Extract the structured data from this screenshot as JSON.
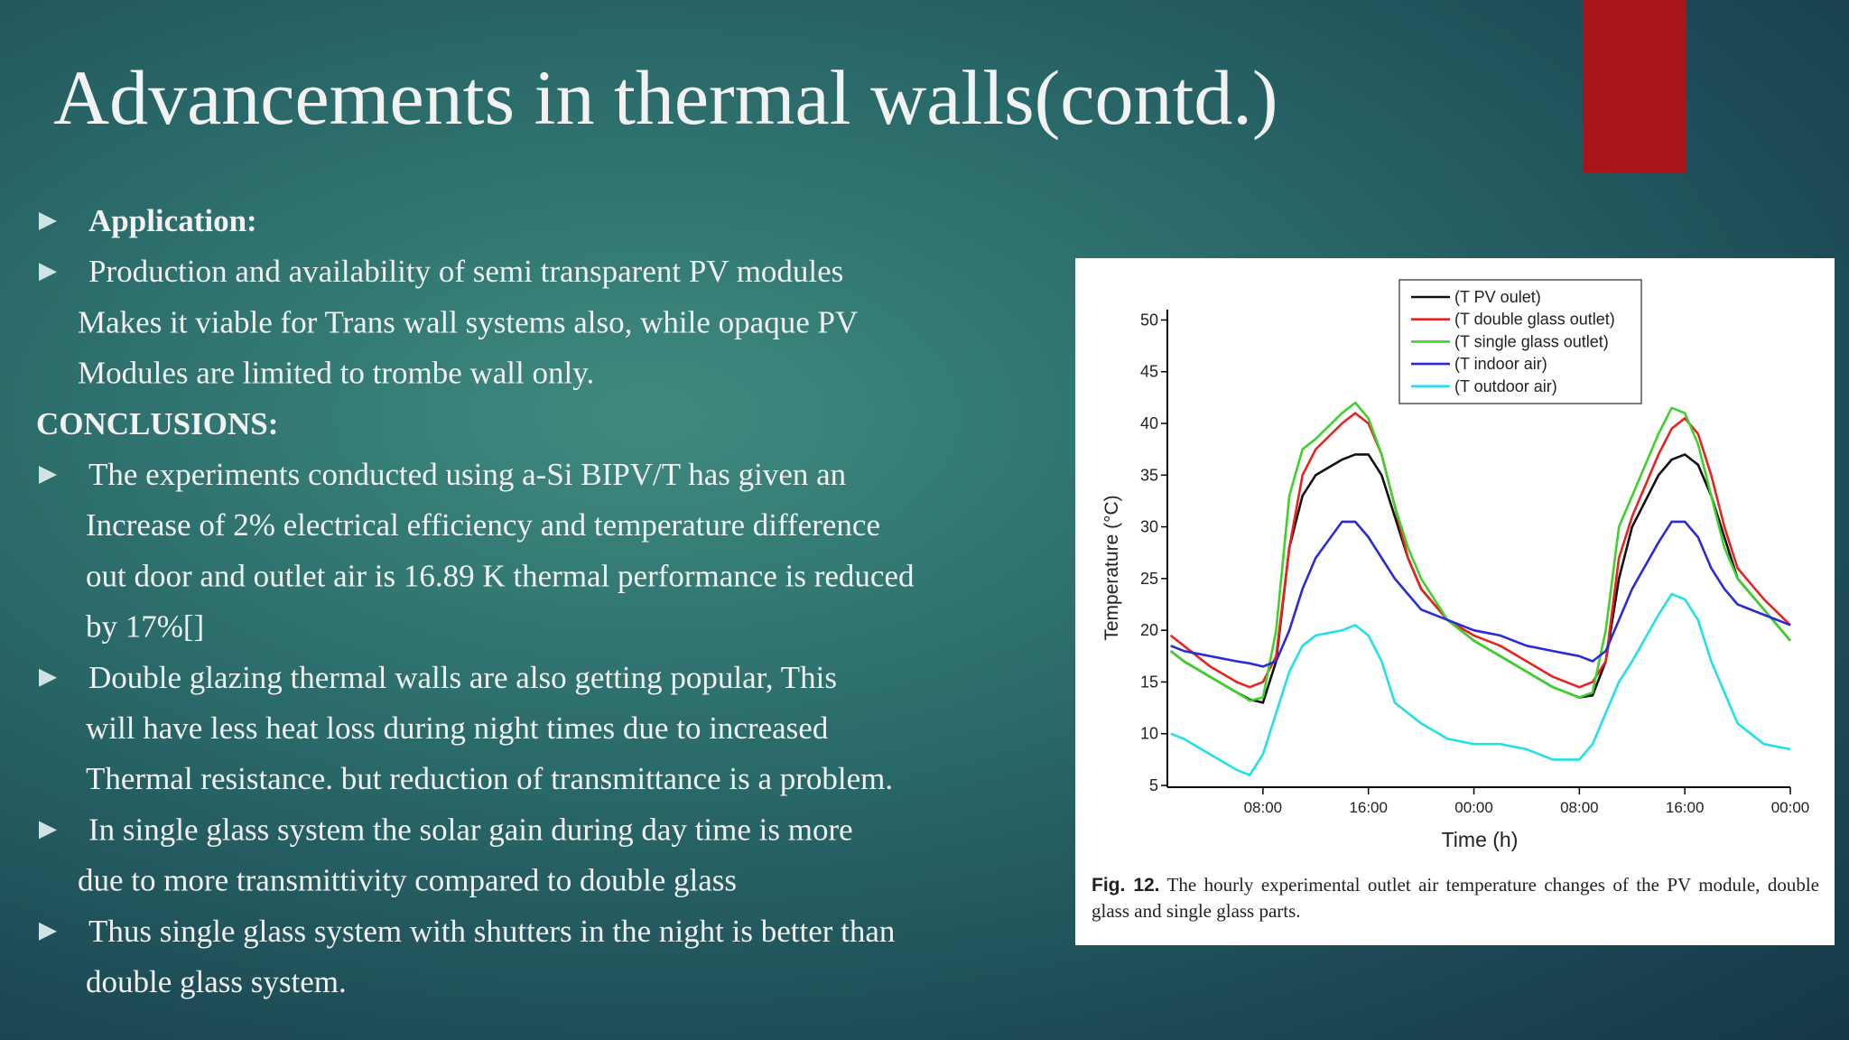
{
  "title": "Advancements in thermal walls(contd.)",
  "body": [
    {
      "bullet": true,
      "bold": true,
      "lines": [
        "Application:"
      ]
    },
    {
      "bullet": true,
      "lines": [
        "Production and availability of semi transparent PV modules",
        "Makes it viable for Trans wall systems also, while opaque PV",
        "Modules are limited to trombe wall only."
      ]
    },
    {
      "bullet": false,
      "bold": true,
      "lines": [
        "CONCLUSIONS:"
      ]
    },
    {
      "bullet": true,
      "lines": [
        "The experiments conducted using a-Si BIPV/T has given an",
        "Increase of 2% electrical efficiency  and temperature difference",
        "out door and outlet air is 16.89 K thermal performance is reduced",
        " by 17%[]"
      ]
    },
    {
      "bullet": true,
      "lines": [
        "Double glazing thermal walls are also getting popular, This",
        "will have less heat loss during night times due to increased",
        "Thermal resistance. but reduction of transmittance is a problem."
      ]
    },
    {
      "bullet": true,
      "lines": [
        "In single glass system the solar gain during day time is more",
        "due to more transmittivity compared to double glass"
      ]
    },
    {
      "bullet": true,
      "lines": [
        "Thus single glass system with shutters in the night is better than",
        "double glass system."
      ]
    }
  ],
  "chart_data": {
    "type": "line",
    "x_label": "Time (h)",
    "y_label": "Temperature (°C)",
    "x": [
      1,
      2,
      4,
      6,
      7,
      8,
      9,
      10,
      11,
      12,
      14,
      15,
      16,
      17,
      18,
      19,
      20,
      22,
      24,
      26,
      28,
      30,
      32,
      33,
      34,
      35,
      36,
      38,
      39,
      40,
      41,
      42,
      43,
      44,
      46,
      48
    ],
    "xlim": [
      0.75,
      48
    ],
    "xticks": [
      {
        "value": 8,
        "label": "08:00"
      },
      {
        "value": 16,
        "label": "16:00"
      },
      {
        "value": 24,
        "label": "00:00"
      },
      {
        "value": 32,
        "label": "08:00"
      },
      {
        "value": 40,
        "label": "16:00"
      },
      {
        "value": 48,
        "label": "00:00"
      }
    ],
    "ylim": [
      5,
      51
    ],
    "yticks": [
      5,
      10,
      15,
      20,
      25,
      30,
      35,
      40,
      45,
      50
    ],
    "legend": "top-right",
    "series": [
      {
        "name": "(T PV oulet)",
        "color": "#111111",
        "values": [
          18,
          17,
          15.5,
          14,
          13.3,
          13,
          17,
          28,
          33,
          35,
          36.5,
          37,
          37,
          35,
          31,
          27,
          24,
          21,
          19,
          17.5,
          16,
          14.5,
          13.5,
          13.7,
          17,
          25,
          30,
          35,
          36.5,
          37,
          36,
          33,
          29,
          25,
          22,
          19
        ]
      },
      {
        "name": "(T double glass outlet)",
        "color": "#e8231f",
        "values": [
          19.5,
          18.5,
          16.5,
          15,
          14.5,
          15,
          17.5,
          28,
          35,
          37.5,
          40,
          41,
          40,
          37,
          32,
          27,
          24,
          21,
          19.5,
          18.5,
          17,
          15.5,
          14.5,
          15,
          17,
          27,
          31,
          37,
          39.5,
          40.5,
          39,
          35,
          30,
          26,
          23,
          20.5
        ]
      },
      {
        "name": "(T single glass outlet)",
        "color": "#3fd12b",
        "values": [
          18,
          17,
          15.5,
          14,
          13.2,
          13.5,
          20,
          33,
          37.5,
          38.5,
          41,
          42,
          40.5,
          37,
          32,
          28,
          25,
          21,
          19,
          17.5,
          16,
          14.5,
          13.5,
          14,
          20,
          30,
          33,
          39,
          41.5,
          41,
          38,
          33,
          28,
          25,
          22,
          19
        ]
      },
      {
        "name": "(T indoor air)",
        "color": "#2b2bd6",
        "values": [
          18.5,
          18,
          17.5,
          17,
          16.8,
          16.5,
          17,
          20,
          24,
          27,
          30.5,
          30.5,
          29,
          27,
          25,
          23.5,
          22,
          21,
          20,
          19.5,
          18.5,
          18,
          17.5,
          17,
          18,
          21,
          24,
          28.5,
          30.5,
          30.5,
          29,
          26,
          24,
          22.5,
          21.5,
          20.5
        ]
      },
      {
        "name": "(T outdoor air)",
        "color": "#22e0e8",
        "values": [
          10,
          9.5,
          8,
          6.5,
          6,
          8,
          12,
          16,
          18.5,
          19.5,
          20,
          20.5,
          19.5,
          17,
          13,
          12,
          11,
          9.5,
          9,
          9,
          8.5,
          7.5,
          7.5,
          9,
          12,
          15,
          17,
          21.5,
          23.5,
          23,
          21,
          17,
          14,
          11,
          9,
          8.5
        ]
      }
    ]
  },
  "caption": {
    "label": "Fig. 12.",
    "text": "The hourly experimental outlet air temperature changes of the PV module, double glass and single glass parts."
  }
}
